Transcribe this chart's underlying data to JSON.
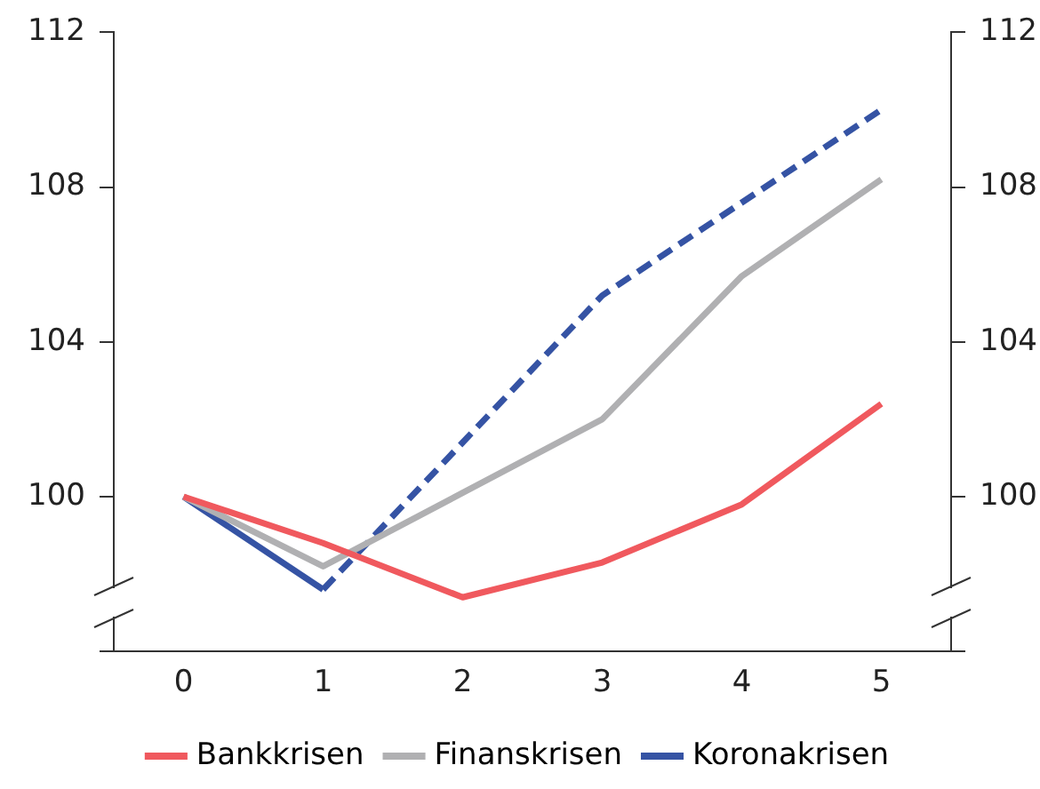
{
  "chart_data": {
    "type": "line",
    "x": [
      0,
      1,
      2,
      3,
      4,
      5
    ],
    "xlim": [
      -0.5,
      5.5
    ],
    "xticks": [
      0,
      1,
      2,
      3,
      4,
      5
    ],
    "ylim": [
      96,
      112
    ],
    "yticks": [
      {
        "value": 96,
        "label": null
      },
      100,
      104,
      108,
      112
    ],
    "y2lim": [
      96,
      112
    ],
    "y2ticks": [
      {
        "value": 96,
        "label": null
      },
      100,
      104,
      108,
      112
    ],
    "series": [
      {
        "name": "Bankkrisen",
        "color": "#f0595e",
        "values": [
          100,
          98.8,
          97.4,
          98.3,
          99.8,
          102.4
        ]
      },
      {
        "name": "Finanskrisen",
        "color": "#b0b0b2",
        "values": [
          100,
          98.2,
          100.1,
          102,
          105.7,
          108.2
        ]
      },
      {
        "name": "Koronakrisen",
        "color": "#3553a4",
        "values": [
          100,
          97.6,
          null,
          null,
          null,
          null
        ]
      },
      {
        "color": "#3553a4",
        "line_style": "dashed",
        "values": [
          null,
          97.6,
          101.4,
          105.2,
          107.6,
          110
        ]
      }
    ],
    "grid": false,
    "legend": "bottom",
    "marker": "none",
    "line_style": "solid"
  }
}
